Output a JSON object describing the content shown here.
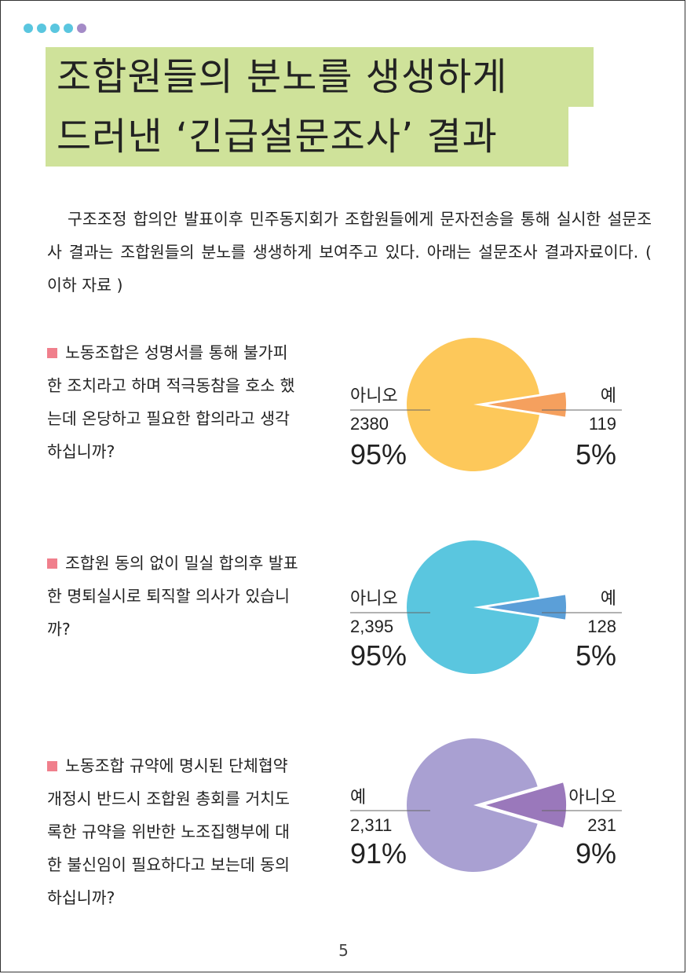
{
  "title": {
    "line1": "조합원들의 분노를 생생하게",
    "line2": "드러낸 ‘긴급설문조사’ 결과"
  },
  "intro": "구조조정 합의안 발표이후 민주동지회가 조합원들에게 문자전송을 통해 실시한 설문조사 결과는 조합원들의 분노를 생생하게 보여주고 있다. 아래는 설문조사 결과자료이다. ( 이하 자료 )",
  "questions": [
    {
      "text": "노동조합은 성명서를 통해 불가피한 조치라고 하며 적극동참을 호소 했는데 온당하고 필요한 합의라고 생각 하십니까?"
    },
    {
      "text": "조합원 동의 없이 밀실 합의후 발표한 명퇴실시로 퇴직할 의사가 있습니까?"
    },
    {
      "text": "노동조합 규약에 명시된 단체협약 개정시 반드시 조합원 총회를 거치도록한 규약을 위반한 노조집행부에 대한 불신임이 필요하다고 보는데 동의 하십니까?"
    }
  ],
  "chart_data": [
    {
      "type": "pie",
      "slices": [
        {
          "label": "아니오",
          "count": "2380",
          "percent": "95%",
          "value": 95,
          "color": "#fdc85a"
        },
        {
          "label": "예",
          "count": "119",
          "percent": "5%",
          "value": 5,
          "color": "#f5a05e"
        }
      ]
    },
    {
      "type": "pie",
      "slices": [
        {
          "label": "아니오",
          "count": "2,395",
          "percent": "95%",
          "value": 95,
          "color": "#5ac6df"
        },
        {
          "label": "예",
          "count": "128",
          "percent": "5%",
          "value": 5,
          "color": "#5b9fd8"
        }
      ]
    },
    {
      "type": "pie",
      "slices": [
        {
          "label": "예",
          "count": "2,311",
          "percent": "91%",
          "value": 91,
          "color": "#a9a0d2"
        },
        {
          "label": "아니오",
          "count": "231",
          "percent": "9%",
          "value": 9,
          "color": "#9a78bb"
        }
      ]
    }
  ],
  "page_number": "5",
  "colors": {
    "title_bg": "#cfe29a",
    "bullet": "#f07f8c",
    "dots": [
      "#5ac6df",
      "#5ac6df",
      "#5ac6df",
      "#5ac6df",
      "#a48bc7"
    ]
  }
}
